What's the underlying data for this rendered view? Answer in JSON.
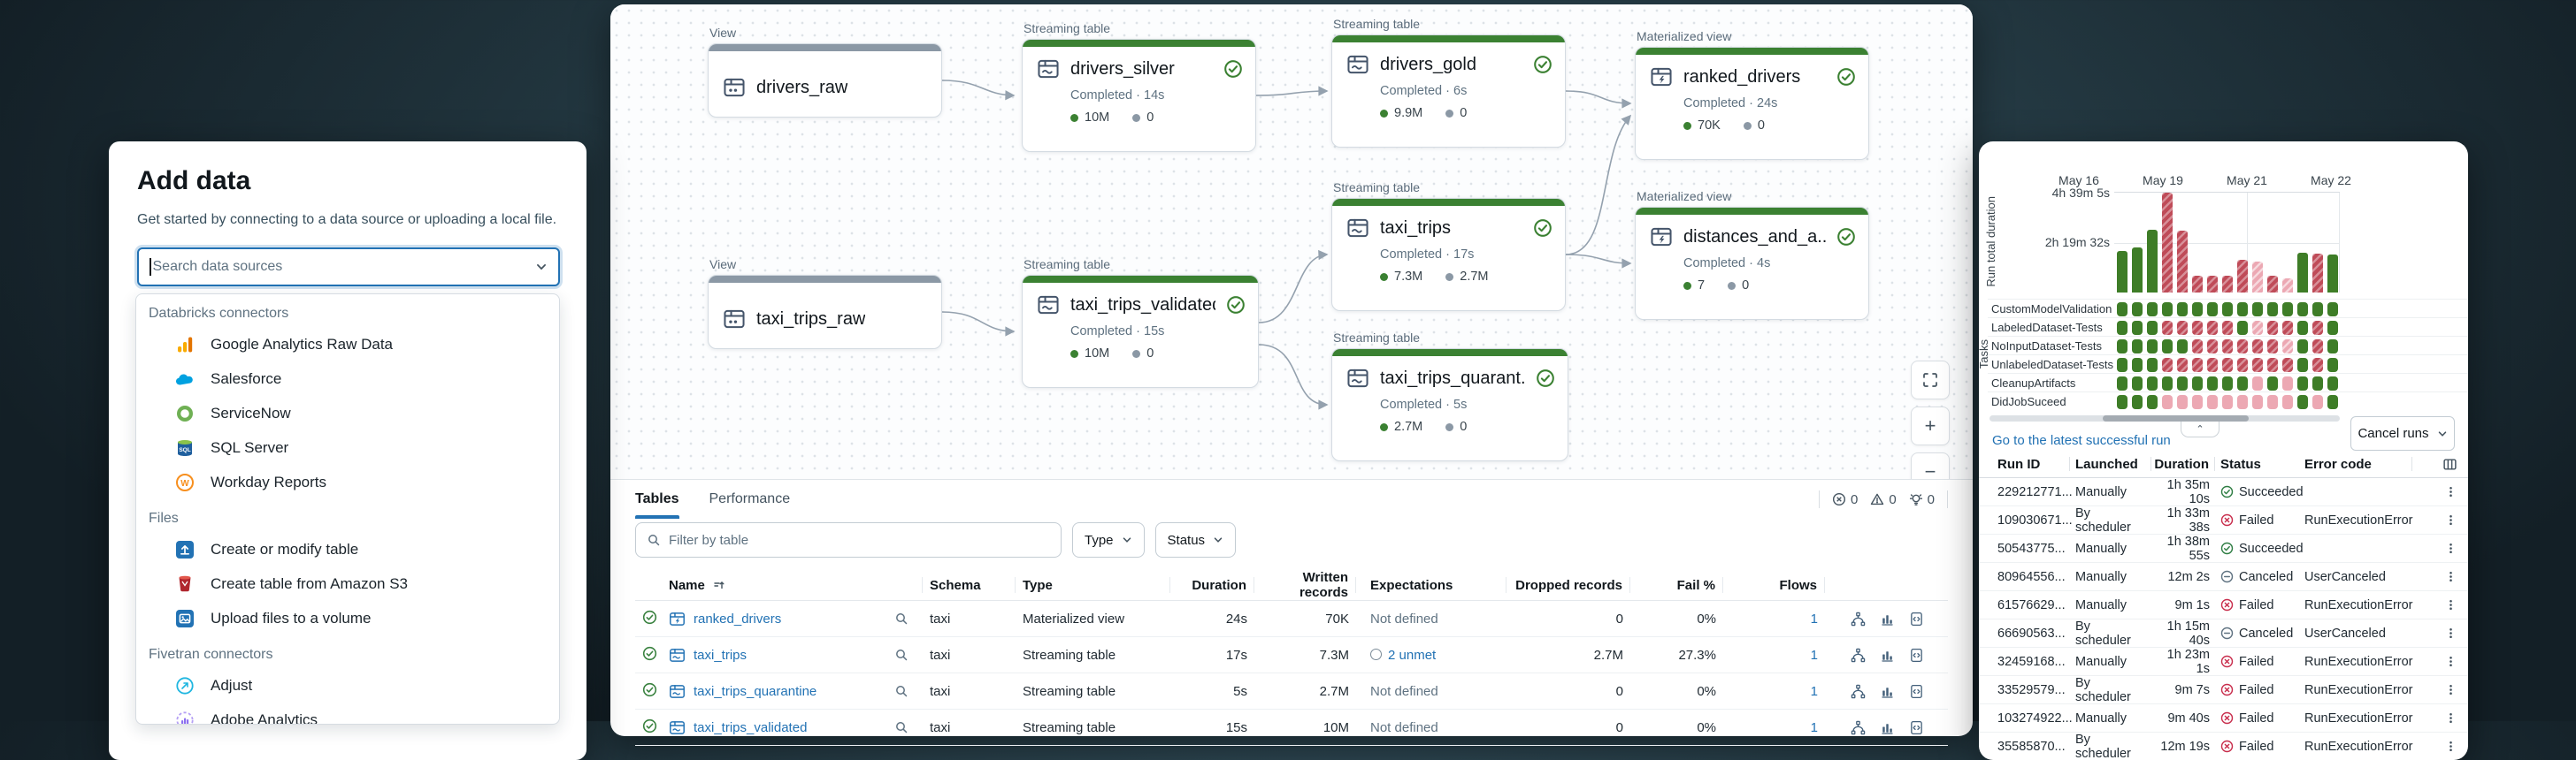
{
  "colors": {
    "accent_blue": "#2272b4",
    "success_green": "#3e7d27",
    "fail_red": "#bf4b58",
    "fail_pink": "#eca8b3",
    "node_green": "#3b8132",
    "node_gray": "#8b98a5"
  },
  "left_panel": {
    "title": "Add data",
    "subtitle": "Get started by connecting to a data source or uploading a local file.",
    "search_placeholder": "Search data sources",
    "sections": [
      {
        "header": "Databricks connectors",
        "items": [
          {
            "label": "Google Analytics Raw Data",
            "icon": "google-analytics"
          },
          {
            "label": "Salesforce",
            "icon": "salesforce"
          },
          {
            "label": "ServiceNow",
            "icon": "servicenow"
          },
          {
            "label": "SQL Server",
            "icon": "sql-server"
          },
          {
            "label": "Workday Reports",
            "icon": "workday"
          }
        ]
      },
      {
        "header": "Files",
        "items": [
          {
            "label": "Create or modify table",
            "icon": "upload-table"
          },
          {
            "label": "Create table from Amazon S3",
            "icon": "amazon-s3"
          },
          {
            "label": "Upload files to a volume",
            "icon": "upload-volume"
          }
        ]
      },
      {
        "header": "Fivetran connectors",
        "items": [
          {
            "label": "Adjust",
            "icon": "adjust"
          },
          {
            "label": "Adobe Analytics",
            "icon": "adobe-analytics"
          }
        ]
      }
    ]
  },
  "canvas": {
    "nodes": [
      {
        "name": "drivers_raw",
        "kind": "View",
        "type": "view"
      },
      {
        "name": "drivers_silver",
        "kind": "Streaming table",
        "type": "streaming",
        "status": "Completed · 14s",
        "written": "10M",
        "dropped": "0"
      },
      {
        "name": "drivers_gold",
        "kind": "Streaming table",
        "type": "streaming",
        "status": "Completed · 6s",
        "written": "9.9M",
        "dropped": "0"
      },
      {
        "name": "ranked_drivers",
        "kind": "Materialized view",
        "type": "materialized",
        "status": "Completed · 24s",
        "written": "70K",
        "dropped": "0"
      },
      {
        "name": "taxi_trips",
        "kind": "Streaming table",
        "type": "streaming",
        "status": "Completed · 17s",
        "written": "7.3M",
        "dropped": "2.7M"
      },
      {
        "name": "distances_and_a...",
        "kind": "Materialized view",
        "type": "materialized",
        "status": "Completed · 4s",
        "written": "7",
        "dropped": "0"
      },
      {
        "name": "taxi_trips_raw",
        "kind": "View",
        "type": "view"
      },
      {
        "name": "taxi_trips_validated",
        "kind": "Streaming table",
        "type": "streaming",
        "status": "Completed · 15s",
        "written": "10M",
        "dropped": "0"
      },
      {
        "name": "taxi_trips_quarant...",
        "kind": "Streaming table",
        "type": "streaming",
        "status": "Completed · 5s",
        "written": "2.7M",
        "dropped": "0"
      }
    ],
    "edges": [
      [
        "drivers_raw",
        "drivers_silver"
      ],
      [
        "drivers_silver",
        "drivers_gold"
      ],
      [
        "drivers_gold",
        "ranked_drivers"
      ],
      [
        "taxi_trips",
        "ranked_drivers"
      ],
      [
        "taxi_trips",
        "distances_and_a..."
      ],
      [
        "taxi_trips_raw",
        "taxi_trips_validated"
      ],
      [
        "taxi_trips_validated",
        "taxi_trips"
      ],
      [
        "taxi_trips_validated",
        "taxi_trips_quarant..."
      ]
    ],
    "controls": [
      "fit-view",
      "zoom-in",
      "zoom-out"
    ]
  },
  "tables_panel": {
    "tabs": [
      {
        "label": "Tables",
        "active": true
      },
      {
        "label": "Performance",
        "active": false
      }
    ],
    "badges": [
      {
        "name": "errors",
        "count": "0"
      },
      {
        "name": "warnings",
        "count": "0"
      },
      {
        "name": "insights",
        "count": "0"
      }
    ],
    "filter_placeholder": "Filter by table",
    "type_filter_label": "Type",
    "status_filter_label": "Status",
    "columns": [
      "Name",
      "Schema",
      "Type",
      "Duration",
      "Written records",
      "Expectations",
      "Dropped records",
      "Fail %",
      "Flows"
    ],
    "rows": [
      {
        "name": "ranked_drivers",
        "icon": "materialized",
        "schema": "taxi",
        "type": "Materialized view",
        "duration": "24s",
        "written": "70K",
        "expectations": "Not defined",
        "unmet": false,
        "dropped": "0",
        "fail": "0%",
        "flows": "1"
      },
      {
        "name": "taxi_trips",
        "icon": "streaming",
        "schema": "taxi",
        "type": "Streaming table",
        "duration": "17s",
        "written": "7.3M",
        "expectations": "2 unmet",
        "unmet": true,
        "dropped": "2.7M",
        "fail": "27.3%",
        "flows": "1"
      },
      {
        "name": "taxi_trips_quarantine",
        "icon": "streaming",
        "schema": "taxi",
        "type": "Streaming table",
        "duration": "5s",
        "written": "2.7M",
        "expectations": "Not defined",
        "unmet": false,
        "dropped": "0",
        "fail": "0%",
        "flows": "1"
      },
      {
        "name": "taxi_trips_validated",
        "icon": "streaming",
        "schema": "taxi",
        "type": "Streaming table",
        "duration": "15s",
        "written": "10M",
        "expectations": "Not defined",
        "unmet": false,
        "dropped": "0",
        "fail": "0%",
        "flows": "1"
      }
    ],
    "row_action_icons": [
      "lineage-icon",
      "metrics-icon",
      "query-file-icon"
    ]
  },
  "runs_panel": {
    "chart": {
      "type": "bar",
      "ylabel": "Run total duration",
      "yticks": [
        "4h 39m 5s",
        "2h 19m 32s"
      ],
      "x_axis_dates": [
        "May 16",
        "May 19",
        "May 21",
        "May 22"
      ],
      "unit": "percent_of_top_tick_4h39m5s",
      "bars": [
        {
          "value": 42,
          "status": "s"
        },
        {
          "value": 45,
          "status": "s"
        },
        {
          "value": 63,
          "status": "s"
        },
        {
          "value": 100,
          "status": "f"
        },
        {
          "value": 62,
          "status": "f"
        },
        {
          "value": 17,
          "status": "f"
        },
        {
          "value": 17,
          "status": "f"
        },
        {
          "value": 17,
          "status": "f"
        },
        {
          "value": 33,
          "status": "f"
        },
        {
          "value": 31,
          "status": "fl"
        },
        {
          "value": 17,
          "status": "f"
        },
        {
          "value": 14,
          "status": "fl"
        },
        {
          "value": 40,
          "status": "s"
        },
        {
          "value": 39,
          "status": "f"
        },
        {
          "value": 38,
          "status": "s"
        }
      ]
    },
    "matrix": {
      "tasks_label": "Tasks",
      "legend": {
        "s": "succeeded",
        "f": "failed",
        "fl": "failed-light",
        "p": "skipped-pink"
      },
      "rows": [
        {
          "label": "CustomModelValidation",
          "cells": [
            "s",
            "s",
            "s",
            "s",
            "s",
            "s",
            "s",
            "s",
            "s",
            "s",
            "s",
            "s",
            "s",
            "s",
            "s"
          ]
        },
        {
          "label": "LabeledDataset-Tests",
          "cells": [
            "s",
            "s",
            "s",
            "f",
            "f",
            "f",
            "f",
            "f",
            "s",
            "fl",
            "f",
            "f",
            "s",
            "f",
            "s"
          ]
        },
        {
          "label": "NoInputDataset-Tests",
          "cells": [
            "s",
            "s",
            "s",
            "s",
            "s",
            "f",
            "f",
            "f",
            "f",
            "f",
            "f",
            "fl",
            "s",
            "f",
            "s"
          ]
        },
        {
          "label": "UnlabeledDataset-Tests",
          "cells": [
            "s",
            "s",
            "s",
            "f",
            "f",
            "f",
            "f",
            "f",
            "f",
            "f",
            "f",
            "f",
            "s",
            "f",
            "s"
          ]
        },
        {
          "label": "CleanupArtifacts",
          "cells": [
            "s",
            "s",
            "s",
            "s",
            "s",
            "s",
            "s",
            "s",
            "s",
            "p",
            "s",
            "p",
            "s",
            "s",
            "s"
          ]
        },
        {
          "label": "DidJobSuceed",
          "cells": [
            "s",
            "s",
            "s",
            "p",
            "p",
            "p",
            "p",
            "p",
            "p",
            "p",
            "p",
            "p",
            "s",
            "p",
            "s"
          ]
        }
      ]
    },
    "latest_link": "Go to the latest successful run",
    "cancel_button": "Cancel runs",
    "table": {
      "columns": [
        "Run ID",
        "Launched",
        "Duration",
        "Status",
        "Error code"
      ],
      "rows": [
        {
          "id": "229212771...",
          "launched": "Manually",
          "duration": "1h 35m 10s",
          "status": "Succeeded",
          "error": ""
        },
        {
          "id": "109030671...",
          "launched": "By scheduler",
          "duration": "1h 33m 38s",
          "status": "Failed",
          "error": "RunExecutionError"
        },
        {
          "id": "50543775...",
          "launched": "Manually",
          "duration": "1h 38m 55s",
          "status": "Succeeded",
          "error": ""
        },
        {
          "id": "80964556...",
          "launched": "Manually",
          "duration": "12m 2s",
          "status": "Canceled",
          "error": "UserCanceled"
        },
        {
          "id": "61576629...",
          "launched": "Manually",
          "duration": "9m 1s",
          "status": "Failed",
          "error": "RunExecutionError"
        },
        {
          "id": "66690563...",
          "launched": "By scheduler",
          "duration": "1h 15m 40s",
          "status": "Canceled",
          "error": "UserCanceled"
        },
        {
          "id": "32459168...",
          "launched": "Manually",
          "duration": "1h 23m 1s",
          "status": "Failed",
          "error": "RunExecutionError"
        },
        {
          "id": "33529579...",
          "launched": "By scheduler",
          "duration": "9m 7s",
          "status": "Failed",
          "error": "RunExecutionError"
        },
        {
          "id": "103274922...",
          "launched": "Manually",
          "duration": "9m 40s",
          "status": "Failed",
          "error": "RunExecutionError"
        },
        {
          "id": "35585870...",
          "launched": "By scheduler",
          "duration": "12m 19s",
          "status": "Failed",
          "error": "RunExecutionError"
        }
      ]
    }
  }
}
